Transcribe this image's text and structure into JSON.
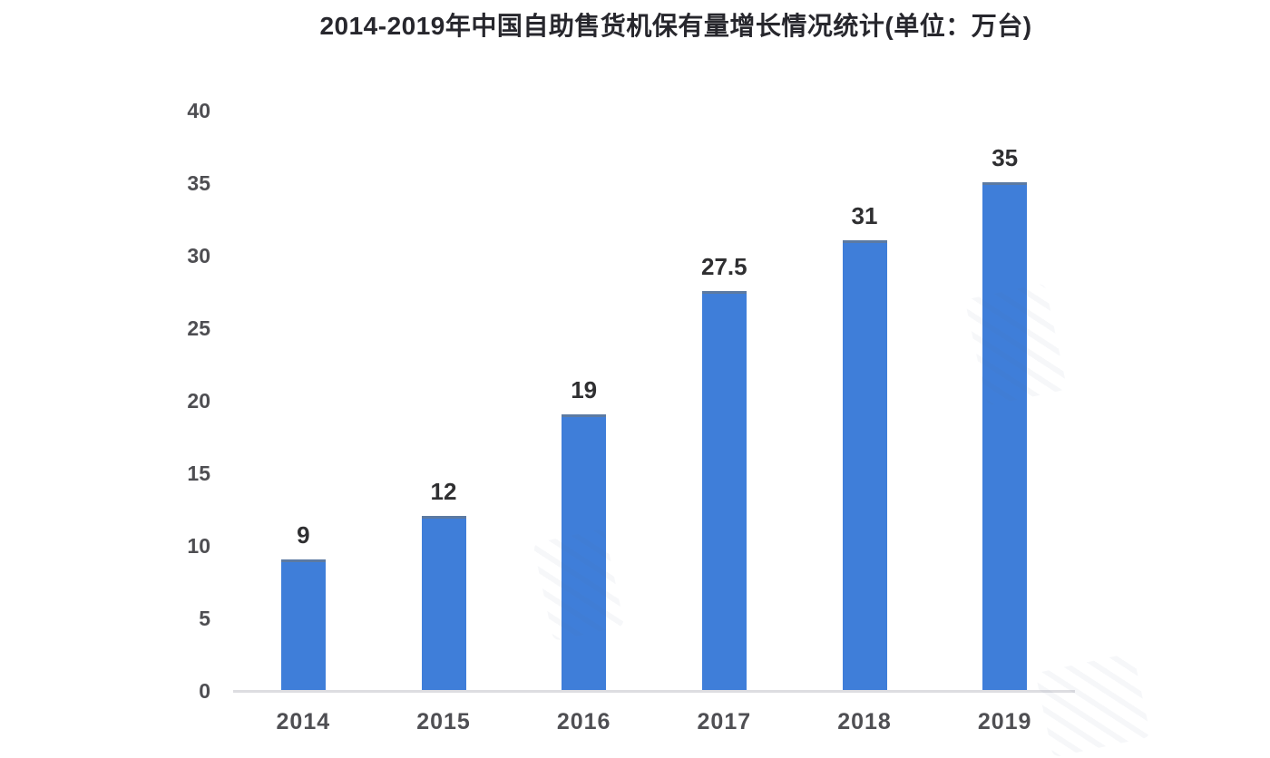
{
  "chart_data": {
    "type": "bar",
    "title": "2014-2019年中国自助售货机保有量增长情况统计(单位：万台)",
    "categories": [
      "2014",
      "2015",
      "2016",
      "2017",
      "2018",
      "2019"
    ],
    "values": [
      9,
      12,
      19,
      27.5,
      31,
      35
    ],
    "value_labels": [
      "9",
      "12",
      "19",
      "27.5",
      "31",
      "35"
    ],
    "series_name": "自助售货机保有量",
    "unit": "万台",
    "xlabel": "",
    "ylabel": "",
    "ylim": [
      0,
      40
    ],
    "yticks": [
      0,
      5,
      10,
      15,
      20,
      25,
      30,
      35,
      40
    ],
    "grid": false,
    "legend_position": "none",
    "colors": {
      "bar_fill": "#3f7ed9",
      "bar_top_edge": "#5c7aa2",
      "axis_line": "#dddde1",
      "title_text": "#27272d",
      "tick_text": "#4e4e52",
      "value_label_text": "#2f2f31",
      "background": "#ffffff"
    }
  }
}
